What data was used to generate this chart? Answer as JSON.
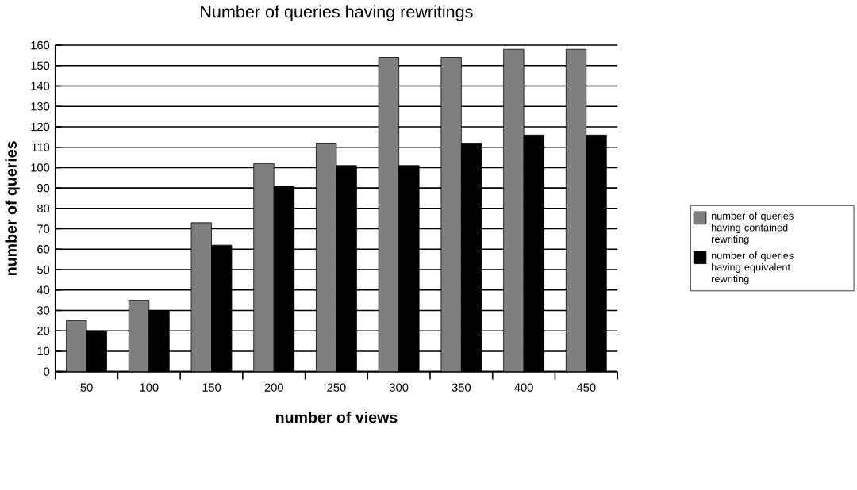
{
  "chart_data": {
    "type": "bar",
    "title": "Number of queries having rewritings",
    "xlabel": "number of views",
    "ylabel": "number of queries",
    "categories": [
      "50",
      "100",
      "150",
      "200",
      "250",
      "300",
      "350",
      "400",
      "450"
    ],
    "series": [
      {
        "name": "number of queries having contained rewriting",
        "color": "#7f7f7f",
        "values": [
          25,
          35,
          73,
          102,
          112,
          154,
          154,
          158,
          158
        ]
      },
      {
        "name": "number of queries having equivalent rewriting",
        "color": "#000000",
        "values": [
          20,
          30,
          62,
          91,
          101,
          101,
          112,
          116,
          116
        ]
      }
    ],
    "ylim": [
      0,
      160
    ],
    "yticks": [
      0,
      10,
      20,
      30,
      40,
      50,
      60,
      70,
      80,
      90,
      100,
      110,
      120,
      130,
      140,
      150,
      160
    ],
    "grid": "y",
    "legend": "right"
  }
}
